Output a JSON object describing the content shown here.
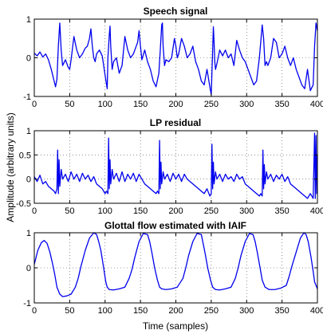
{
  "figure": {
    "ylabel": "Amplitude (arbitrary units)",
    "xlabel": "Time (samples)"
  },
  "colors": {
    "line": "#0000ee"
  },
  "chart_data": [
    {
      "type": "line",
      "title": "Speech signal",
      "xlim": [
        0,
        400
      ],
      "ylim": [
        -1,
        1
      ],
      "x_ticks": [
        0,
        50,
        100,
        150,
        200,
        250,
        300,
        350,
        400
      ],
      "y_ticks": [
        -1,
        0,
        1
      ],
      "grid": true,
      "series": [
        {
          "x": [
            0,
            4,
            8,
            12,
            16,
            20,
            24,
            28,
            30,
            32,
            34,
            36,
            38,
            40,
            44,
            48,
            50,
            52,
            56,
            60,
            64,
            68,
            72,
            75,
            78,
            80,
            82,
            84,
            86,
            88,
            92,
            96,
            100,
            103,
            104,
            106,
            107,
            108,
            110,
            112,
            116,
            120,
            124,
            128,
            132,
            136,
            140,
            144,
            146,
            148,
            150,
            152,
            156,
            160,
            164,
            168,
            172,
            176,
            178,
            180,
            181,
            182,
            184,
            186,
            190,
            194,
            198,
            200,
            202,
            204,
            208,
            212,
            216,
            220,
            224,
            228,
            232,
            236,
            240,
            244,
            248,
            250,
            252,
            253,
            254,
            255,
            256,
            258,
            262,
            266,
            270,
            274,
            278,
            282,
            286,
            290,
            294,
            298,
            302,
            306,
            310,
            314,
            318,
            322,
            324,
            326,
            328,
            330,
            334,
            338,
            342,
            346,
            350,
            354,
            358,
            362,
            366,
            370,
            374,
            378,
            382,
            386,
            390,
            394,
            396,
            398,
            400
          ],
          "y": [
            0.12,
            0.05,
            0.15,
            0.02,
            0.1,
            -0.05,
            -0.3,
            -0.6,
            -0.75,
            -0.55,
            0.3,
            0.9,
            0.2,
            -0.2,
            -0.05,
            -0.25,
            -0.3,
            -0.05,
            0.55,
            0.2,
            0.0,
            0.1,
            0.25,
            0.3,
            0.5,
            0.75,
            0.3,
            0.0,
            -0.1,
            0.1,
            0.2,
            0.05,
            -0.45,
            -0.8,
            0.0,
            0.6,
            0.82,
            0.3,
            -0.3,
            -0.1,
            0.0,
            -0.4,
            -0.2,
            0.55,
            0.2,
            0.0,
            0.1,
            0.3,
            0.4,
            0.7,
            0.3,
            -0.05,
            0.2,
            -0.1,
            -0.3,
            -0.6,
            -0.75,
            -0.4,
            0.2,
            0.85,
            0.9,
            0.3,
            -0.2,
            -0.05,
            -0.1,
            0.0,
            0.5,
            0.3,
            0.0,
            0.1,
            0.5,
            0.3,
            0.0,
            0.1,
            0.3,
            -0.1,
            -0.3,
            -0.6,
            -0.7,
            -0.3,
            -0.75,
            -0.95,
            0.2,
            0.8,
            0.4,
            -0.1,
            -0.3,
            -0.15,
            0.2,
            0.05,
            0.2,
            0.0,
            0.1,
            -0.2,
            0.45,
            0.2,
            0.0,
            -0.1,
            -0.3,
            -0.5,
            -0.7,
            -0.6,
            0.0,
            0.85,
            0.5,
            -0.2,
            -0.1,
            -0.2,
            0.0,
            0.5,
            0.4,
            0.0,
            0.1,
            0.3,
            0.0,
            -0.2,
            0.0,
            -0.3,
            -0.5,
            -0.7,
            -0.8,
            -0.3,
            -0.85,
            -0.7,
            0.3,
            0.9,
            0.7
          ]
        }
      ]
    },
    {
      "type": "line",
      "title": "LP residual",
      "xlim": [
        0,
        400
      ],
      "ylim": [
        -0.5,
        1
      ],
      "x_ticks": [
        0,
        50,
        100,
        150,
        200,
        250,
        300,
        350,
        400
      ],
      "y_ticks": [
        -0.5,
        0,
        0.5,
        1
      ],
      "grid": true,
      "series": [
        {
          "x": [
            0,
            4,
            8,
            12,
            16,
            20,
            24,
            28,
            30,
            32,
            33,
            34,
            35,
            36,
            38,
            40,
            44,
            48,
            52,
            56,
            60,
            64,
            68,
            72,
            76,
            80,
            84,
            88,
            92,
            96,
            100,
            102,
            104,
            105,
            106,
            107,
            108,
            110,
            112,
            116,
            120,
            124,
            128,
            132,
            136,
            140,
            144,
            148,
            152,
            156,
            160,
            164,
            168,
            172,
            174,
            176,
            177,
            178,
            179,
            180,
            182,
            184,
            188,
            192,
            196,
            200,
            204,
            208,
            212,
            216,
            220,
            224,
            228,
            232,
            236,
            240,
            244,
            248,
            250,
            251,
            252,
            253,
            254,
            256,
            258,
            262,
            266,
            270,
            274,
            278,
            282,
            286,
            290,
            294,
            298,
            302,
            306,
            310,
            314,
            318,
            320,
            322,
            323,
            324,
            325,
            326,
            328,
            330,
            334,
            338,
            342,
            346,
            350,
            354,
            358,
            362,
            366,
            370,
            374,
            378,
            382,
            386,
            390,
            394,
            396,
            397,
            398,
            399,
            400
          ],
          "y": [
            0.05,
            -0.05,
            0.08,
            -0.1,
            -0.05,
            -0.15,
            -0.2,
            -0.25,
            -0.3,
            -0.2,
            0.6,
            -0.3,
            0.4,
            -0.15,
            0.2,
            0.0,
            0.1,
            -0.05,
            0.15,
            0.0,
            0.1,
            -0.05,
            0.12,
            0.0,
            0.08,
            -0.05,
            0.05,
            -0.1,
            -0.15,
            -0.2,
            -0.3,
            -0.25,
            -0.3,
            0.85,
            -0.2,
            0.4,
            -0.1,
            0.2,
            0.0,
            0.12,
            -0.05,
            0.15,
            -0.05,
            0.1,
            0.0,
            0.12,
            -0.05,
            0.1,
            0.0,
            -0.1,
            -0.15,
            -0.2,
            -0.25,
            -0.3,
            -0.25,
            -0.3,
            0.8,
            -0.2,
            0.35,
            -0.1,
            0.15,
            0.0,
            0.1,
            -0.05,
            0.12,
            0.0,
            0.1,
            -0.05,
            0.1,
            0.0,
            -0.05,
            -0.1,
            -0.15,
            -0.2,
            -0.25,
            -0.3,
            -0.2,
            -0.35,
            -0.3,
            0.72,
            -0.2,
            0.35,
            -0.1,
            0.15,
            0.0,
            0.1,
            -0.05,
            0.1,
            0.0,
            0.05,
            -0.05,
            0.1,
            0.0,
            0.05,
            -0.1,
            -0.15,
            -0.2,
            -0.25,
            -0.3,
            -0.35,
            -0.3,
            -0.35,
            0.6,
            -0.2,
            0.3,
            -0.1,
            0.15,
            0.0,
            0.1,
            -0.05,
            0.08,
            0.0,
            0.1,
            -0.05,
            0.05,
            -0.1,
            -0.15,
            -0.2,
            -0.25,
            -0.3,
            -0.35,
            -0.4,
            -0.3,
            -0.4,
            0.95,
            -0.4,
            0.9,
            -0.3,
            0.5
          ]
        }
      ]
    },
    {
      "type": "line",
      "title": "Glottal flow estimated with IAIF",
      "xlim": [
        0,
        400
      ],
      "ylim": [
        -1,
        1
      ],
      "x_ticks": [
        0,
        50,
        100,
        150,
        200,
        250,
        300,
        350,
        400
      ],
      "y_ticks": [
        -1,
        0,
        1
      ],
      "grid": true,
      "series": [
        {
          "x": [
            0,
            5,
            10,
            14,
            18,
            22,
            26,
            29,
            32,
            36,
            40,
            46,
            52,
            58,
            62,
            66,
            72,
            78,
            84,
            88,
            91,
            94,
            98,
            101,
            103,
            106,
            112,
            120,
            128,
            134,
            138,
            142,
            148,
            154,
            160,
            163,
            166,
            170,
            174,
            177,
            180,
            186,
            194,
            202,
            210,
            214,
            218,
            224,
            230,
            236,
            238,
            241,
            245,
            249,
            252,
            256,
            262,
            270,
            278,
            284,
            288,
            292,
            298,
            304,
            309,
            312,
            315,
            319,
            322,
            326,
            332,
            340,
            348,
            356,
            360,
            364,
            370,
            376,
            381,
            384,
            387,
            391,
            394,
            396,
            400
          ],
          "y": [
            0.1,
            0.5,
            0.72,
            0.78,
            0.7,
            0.45,
            0.1,
            -0.2,
            -0.55,
            -0.75,
            -0.82,
            -0.8,
            -0.75,
            -0.55,
            -0.3,
            0.05,
            0.5,
            0.85,
            1.0,
            0.95,
            0.75,
            0.5,
            0.0,
            -0.4,
            -0.55,
            -0.62,
            -0.63,
            -0.6,
            -0.55,
            -0.3,
            -0.05,
            0.3,
            0.75,
            0.98,
            0.95,
            0.75,
            0.45,
            0.0,
            -0.35,
            -0.55,
            -0.6,
            -0.62,
            -0.6,
            -0.55,
            -0.3,
            0.0,
            0.35,
            0.75,
            0.98,
            0.95,
            0.75,
            0.45,
            0.0,
            -0.35,
            -0.55,
            -0.62,
            -0.63,
            -0.6,
            -0.55,
            -0.3,
            0.0,
            0.35,
            0.75,
            0.98,
            0.95,
            0.75,
            0.45,
            0.0,
            -0.35,
            -0.55,
            -0.62,
            -0.62,
            -0.58,
            -0.5,
            -0.25,
            0.05,
            0.45,
            0.85,
            1.0,
            0.95,
            0.75,
            0.3,
            -0.1,
            -0.4,
            -0.6
          ]
        }
      ]
    }
  ]
}
